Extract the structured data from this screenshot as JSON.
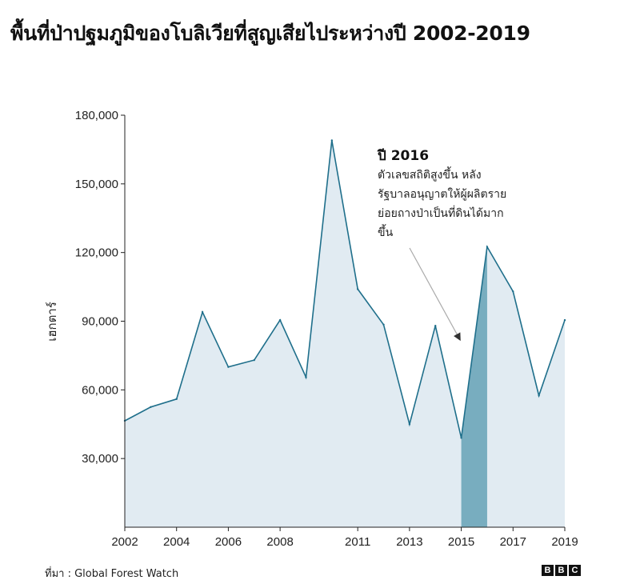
{
  "title": "พื้นที่ป่าปฐมภูมิของโบลิเวียที่สูญเสียไประหว่างปี 2002-2019",
  "source": "ที่มา : Global Forest Watch",
  "logo_letters": [
    "B",
    "B",
    "C"
  ],
  "colors": {
    "line": "#1f6f8b",
    "fill": "#e1ebf2",
    "highlight": "#78adbf",
    "axis": "#222222",
    "arrow": "#aaaaaa"
  },
  "chart_data": {
    "type": "area",
    "title": "พื้นที่ป่าปฐมภูมิของโบลิเวียที่สูญเสียไประหว่างปี 2002-2019",
    "xlabel": "",
    "ylabel": "เฮกตาร์",
    "x": [
      2002,
      2003,
      2004,
      2005,
      2006,
      2007,
      2008,
      2009,
      2010,
      2011,
      2012,
      2013,
      2014,
      2015,
      2016,
      2017,
      2018,
      2019
    ],
    "values": [
      46500,
      52500,
      56000,
      94000,
      70000,
      73000,
      90500,
      65500,
      169000,
      104000,
      88500,
      45000,
      88000,
      39000,
      122500,
      103000,
      57500,
      90500
    ],
    "ylim": [
      0,
      180000
    ],
    "xlim": [
      2002,
      2019
    ],
    "y_ticks": [
      30000,
      60000,
      90000,
      120000,
      150000,
      180000
    ],
    "y_tick_labels": [
      "30,000",
      "60,000",
      "90,000",
      "120,000",
      "150,000",
      "180,000"
    ],
    "x_ticks": [
      2002,
      2004,
      2006,
      2008,
      2011,
      2013,
      2015,
      2017,
      2019
    ],
    "x_tick_labels": [
      "2002",
      "2004",
      "2006",
      "2008",
      "2011",
      "2013",
      "2015",
      "2017",
      "2019"
    ],
    "highlight_range": [
      2015,
      2016
    ],
    "grid": false,
    "annotation": {
      "title": "ปี 2016",
      "lines": [
        "ตัวเลขสถิติสูงขึ้น หลัง",
        "รัฐบาลอนุญาตให้ผู้ผลิตราย",
        "ย่อยถางป่าเป็นที่ดินได้มาก",
        "ขึ้น"
      ],
      "points_to_year": 2015.99
    }
  }
}
